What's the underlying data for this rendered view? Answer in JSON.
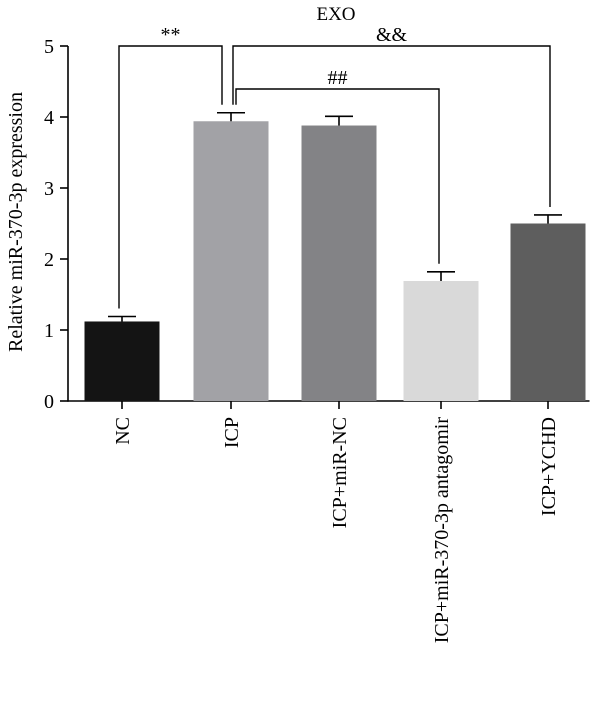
{
  "chart_data": {
    "type": "bar",
    "title": "EXO",
    "xlabel": "",
    "ylabel": "Relative miR-370-3p expression",
    "ylim": [
      0,
      5
    ],
    "yticks": [
      0,
      1,
      2,
      3,
      4,
      5
    ],
    "grid": false,
    "legend": "none",
    "categories": [
      "NC",
      "ICP",
      "ICP+miR-NC",
      "ICP+miR-370-3p antagomir",
      "ICP+YCHD"
    ],
    "values": [
      1.12,
      3.94,
      3.88,
      1.69,
      2.5
    ],
    "errors": [
      0.07,
      0.12,
      0.13,
      0.13,
      0.12
    ],
    "colors": [
      "#141414",
      "#a2a2a6",
      "#838386",
      "#d9d9d9",
      "#5e5e5e"
    ],
    "annotations": [
      {
        "from": "NC",
        "to": "ICP",
        "label": "**"
      },
      {
        "from": "ICP",
        "to": "ICP+miR-370-3p antagomir",
        "label": "##"
      },
      {
        "from": "ICP",
        "to": "ICP+YCHD",
        "label": "&&"
      }
    ]
  }
}
